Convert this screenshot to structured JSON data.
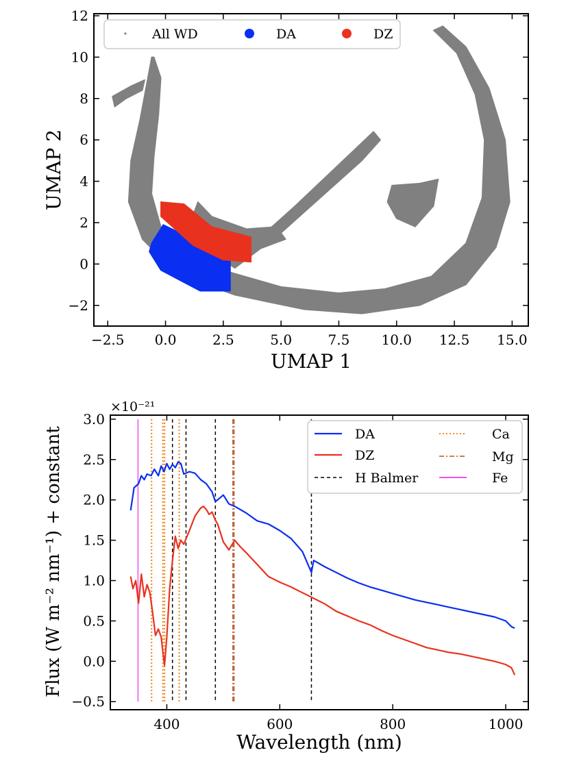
{
  "chart_data": [
    {
      "type": "scatter",
      "title": "",
      "xlabel": "UMAP 1",
      "ylabel": "UMAP 2",
      "xlim": [
        -3.1,
        15.7
      ],
      "ylim": [
        -3.0,
        12.1
      ],
      "grid": false,
      "legend_placement": "top",
      "xticks": [
        -2.5,
        0,
        2.5,
        5,
        7.5,
        10,
        12.5,
        15
      ],
      "xtick_labels": [
        "−2.5",
        "0.0",
        "2.5",
        "5.0",
        "7.5",
        "10.0",
        "12.5",
        "15.0"
      ],
      "yticks": [
        -2,
        0,
        2,
        4,
        6,
        8,
        10,
        12
      ],
      "ytick_labels": [
        "−2",
        "0",
        "2",
        "4",
        "6",
        "8",
        "10",
        "12"
      ],
      "legend": [
        {
          "label": "All WD",
          "color": "#808080"
        },
        {
          "label": "DA",
          "color": "#0a2ff0"
        },
        {
          "label": "DZ",
          "color": "#e8321e"
        }
      ],
      "series": [
        {
          "name": "All WD",
          "color": "#808080",
          "regions": [
            {
              "shape": "outer-arc",
              "points": [
                [
                  -0.6,
                  10.0
                ],
                [
                  -1.1,
                  7.0
                ],
                [
                  -1.5,
                  5.0
                ],
                [
                  -1.6,
                  3.0
                ],
                [
                  -1.0,
                  1.2
                ],
                [
                  0.5,
                  -0.5
                ],
                [
                  3.0,
                  -1.5
                ],
                [
                  6.0,
                  -2.2
                ],
                [
                  8.5,
                  -2.4
                ],
                [
                  11.0,
                  -2.0
                ],
                [
                  13.0,
                  -1.0
                ],
                [
                  14.3,
                  0.8
                ],
                [
                  14.9,
                  3.0
                ],
                [
                  14.7,
                  6.0
                ],
                [
                  14.0,
                  8.5
                ],
                [
                  13.0,
                  10.5
                ],
                [
                  12.0,
                  11.5
                ],
                [
                  11.6,
                  11.3
                ],
                [
                  12.6,
                  10.2
                ],
                [
                  13.4,
                  8.2
                ],
                [
                  13.8,
                  6.0
                ],
                [
                  13.7,
                  3.2
                ],
                [
                  13.0,
                  1.0
                ],
                [
                  11.5,
                  -0.6
                ],
                [
                  9.5,
                  -1.2
                ],
                [
                  7.5,
                  -1.4
                ],
                [
                  5.0,
                  -1.1
                ],
                [
                  2.5,
                  -0.3
                ],
                [
                  1.0,
                  0.5
                ],
                [
                  -0.2,
                  1.8
                ],
                [
                  -0.6,
                  3.4
                ],
                [
                  -0.5,
                  5.2
                ],
                [
                  -0.3,
                  7.2
                ],
                [
                  -0.2,
                  9.0
                ],
                [
                  -0.5,
                  10.0
                ]
              ]
            },
            {
              "shape": "diagonal-band",
              "points": [
                [
                  3.0,
                  -0.2
                ],
                [
                  5.0,
                  1.5
                ],
                [
                  7.0,
                  3.5
                ],
                [
                  8.5,
                  5.0
                ],
                [
                  9.3,
                  6.0
                ],
                [
                  9.0,
                  6.4
                ],
                [
                  7.3,
                  4.6
                ],
                [
                  5.6,
                  2.8
                ],
                [
                  4.0,
                  1.2
                ],
                [
                  2.6,
                  0.1
                ]
              ]
            },
            {
              "shape": "middle-island",
              "points": [
                [
                  1.4,
                  3.0
                ],
                [
                  2.0,
                  2.3
                ],
                [
                  3.5,
                  1.7
                ],
                [
                  4.8,
                  1.8
                ],
                [
                  5.2,
                  1.2
                ],
                [
                  4.0,
                  0.7
                ],
                [
                  2.5,
                  0.9
                ],
                [
                  1.5,
                  1.4
                ],
                [
                  1.2,
                  2.4
                ]
              ]
            },
            {
              "shape": "right-island",
              "points": [
                [
                  9.8,
                  3.8
                ],
                [
                  11.0,
                  3.9
                ],
                [
                  11.8,
                  4.1
                ],
                [
                  11.6,
                  2.8
                ],
                [
                  10.8,
                  1.8
                ],
                [
                  10.0,
                  2.2
                ],
                [
                  9.6,
                  3.0
                ]
              ]
            },
            {
              "shape": "left-strand",
              "points": [
                [
                  -2.3,
                  8.1
                ],
                [
                  -1.5,
                  8.6
                ],
                [
                  -0.9,
                  8.9
                ],
                [
                  -1.0,
                  8.4
                ],
                [
                  -1.7,
                  8.0
                ],
                [
                  -2.2,
                  7.6
                ]
              ]
            }
          ]
        },
        {
          "name": "DA",
          "color": "#0a2ff0",
          "regions": [
            {
              "shape": "cluster",
              "points": [
                [
                  -0.6,
                  1.0
                ],
                [
                  -0.1,
                  1.9
                ],
                [
                  1.2,
                  1.2
                ],
                [
                  2.8,
                  0.3
                ],
                [
                  2.8,
                  -1.3
                ],
                [
                  1.5,
                  -1.3
                ],
                [
                  -0.2,
                  -0.3
                ],
                [
                  -0.7,
                  0.6
                ]
              ]
            }
          ]
        },
        {
          "name": "DZ",
          "color": "#e8321e",
          "regions": [
            {
              "shape": "cluster",
              "points": [
                [
                  -0.2,
                  3.0
                ],
                [
                  0.8,
                  2.9
                ],
                [
                  2.0,
                  1.8
                ],
                [
                  3.7,
                  1.3
                ],
                [
                  3.7,
                  0.1
                ],
                [
                  2.5,
                  0.2
                ],
                [
                  1.2,
                  0.9
                ],
                [
                  -0.2,
                  2.3
                ]
              ]
            }
          ]
        }
      ]
    },
    {
      "type": "line",
      "title": "",
      "xlabel": "Wavelength (nm)",
      "ylabel": "Flux (W m⁻² nm⁻¹) + constant",
      "scale_label": "×10⁻²¹",
      "xlim": [
        300,
        1040
      ],
      "ylim": [
        -0.6,
        3.05
      ],
      "grid": false,
      "legend_placement": "top-right",
      "xticks": [
        400,
        600,
        800,
        1000
      ],
      "xtick_labels": [
        "400",
        "600",
        "800",
        "1000"
      ],
      "yticks": [
        -0.5,
        0,
        0.5,
        1,
        1.5,
        2,
        2.5,
        3
      ],
      "ytick_labels": [
        "−0.5",
        "0.0",
        "0.5",
        "1.0",
        "1.5",
        "2.0",
        "2.5",
        "3.0"
      ],
      "legend": [
        {
          "label": "DA",
          "color": "#0a2ff0",
          "style": "solid"
        },
        {
          "label": "DZ",
          "color": "#e8321e",
          "style": "solid"
        },
        {
          "label": "H Balmer",
          "color": "#000000",
          "style": "dashed"
        },
        {
          "label": "Ca",
          "color": "#f08a1e",
          "style": "dotted"
        },
        {
          "label": "Mg",
          "color": "#b4501e",
          "style": "dashdot"
        },
        {
          "label": "Fe",
          "color": "#f050f0",
          "style": "solid"
        }
      ],
      "series": [
        {
          "name": "DA",
          "color": "#0a2ff0",
          "x": [
            336,
            342,
            350,
            355,
            360,
            365,
            372,
            378,
            385,
            390,
            395,
            400,
            405,
            410,
            415,
            420,
            425,
            430,
            440,
            450,
            460,
            470,
            480,
            486,
            490,
            500,
            510,
            520,
            540,
            560,
            580,
            600,
            620,
            640,
            656,
            660,
            680,
            700,
            720,
            740,
            760,
            780,
            800,
            820,
            840,
            860,
            880,
            900,
            920,
            940,
            960,
            980,
            1000,
            1010,
            1016
          ],
          "y": [
            1.87,
            2.15,
            2.2,
            2.3,
            2.25,
            2.32,
            2.3,
            2.38,
            2.3,
            2.42,
            2.35,
            2.45,
            2.38,
            2.44,
            2.4,
            2.47,
            2.45,
            2.32,
            2.35,
            2.33,
            2.25,
            2.2,
            2.1,
            1.98,
            2.0,
            2.06,
            1.95,
            1.92,
            1.84,
            1.74,
            1.7,
            1.62,
            1.52,
            1.36,
            1.1,
            1.25,
            1.17,
            1.1,
            1.03,
            0.97,
            0.92,
            0.88,
            0.84,
            0.8,
            0.76,
            0.73,
            0.7,
            0.67,
            0.64,
            0.61,
            0.58,
            0.55,
            0.5,
            0.43,
            0.41
          ]
        },
        {
          "name": "DZ",
          "color": "#e8321e",
          "x": [
            336,
            340,
            345,
            350,
            355,
            360,
            365,
            370,
            375,
            380,
            385,
            390,
            393,
            396,
            400,
            405,
            410,
            415,
            420,
            425,
            430,
            440,
            450,
            460,
            465,
            470,
            475,
            480,
            486,
            490,
            500,
            510,
            520,
            530,
            540,
            560,
            580,
            600,
            620,
            640,
            660,
            680,
            700,
            720,
            740,
            760,
            780,
            800,
            820,
            840,
            860,
            880,
            900,
            920,
            940,
            960,
            980,
            1000,
            1010,
            1016
          ],
          "y": [
            1.05,
            0.9,
            1.0,
            0.72,
            1.08,
            0.8,
            0.95,
            0.85,
            0.6,
            0.32,
            0.4,
            0.3,
            0.12,
            -0.05,
            0.3,
            0.9,
            1.25,
            1.55,
            1.4,
            1.5,
            1.45,
            1.62,
            1.8,
            1.9,
            1.92,
            1.88,
            1.82,
            1.85,
            1.75,
            1.7,
            1.48,
            1.38,
            1.5,
            1.42,
            1.35,
            1.2,
            1.05,
            0.98,
            0.92,
            0.85,
            0.78,
            0.71,
            0.62,
            0.56,
            0.5,
            0.45,
            0.38,
            0.32,
            0.27,
            0.22,
            0.17,
            0.14,
            0.11,
            0.09,
            0.06,
            0.03,
            0.0,
            -0.04,
            -0.08,
            -0.17
          ]
        }
      ],
      "reference_lines": [
        {
          "name": "Fe",
          "color": "#f050f0",
          "style": "solid",
          "x": [
            349
          ]
        },
        {
          "name": "Ca",
          "color": "#f08a1e",
          "style": "dotted",
          "x": [
            373,
            393,
            396,
            422
          ]
        },
        {
          "name": "H Balmer",
          "color": "#000000",
          "style": "dashed",
          "x": [
            410,
            434,
            486,
            656
          ]
        },
        {
          "name": "Mg",
          "color": "#b4501e",
          "style": "dashdot",
          "x": [
            517,
            519
          ]
        }
      ],
      "reference_ymax": 3.0
    }
  ]
}
